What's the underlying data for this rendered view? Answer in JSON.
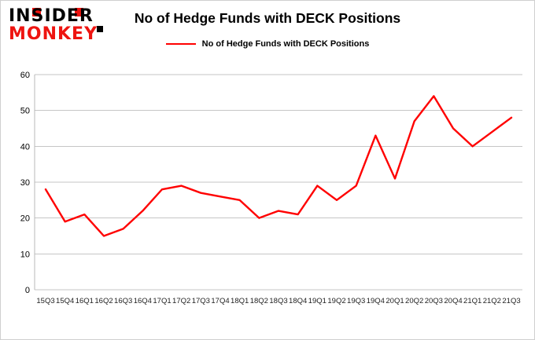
{
  "logo": {
    "line1": "INSIDER",
    "line2": "MONKEY",
    "accent_color": "#ee1410"
  },
  "legend": {
    "label": "No of Hedge Funds with DECK Positions",
    "color": "#ff0000"
  },
  "chart_data": {
    "type": "line",
    "title": "No of Hedge Funds with DECK Positions",
    "xlabel": "",
    "ylabel": "",
    "ylim": [
      0,
      60
    ],
    "yticks": [
      0,
      10,
      20,
      30,
      40,
      50,
      60
    ],
    "grid": true,
    "legend_position": "top",
    "categories": [
      "15Q3",
      "15Q4",
      "16Q1",
      "16Q2",
      "16Q3",
      "16Q4",
      "17Q1",
      "17Q2",
      "17Q3",
      "17Q4",
      "18Q1",
      "18Q2",
      "18Q3",
      "18Q4",
      "19Q1",
      "19Q2",
      "19Q3",
      "19Q4",
      "20Q1",
      "20Q2",
      "20Q3",
      "20Q4",
      "21Q1",
      "21Q2",
      "21Q3"
    ],
    "series": [
      {
        "name": "No of Hedge Funds with DECK Positions",
        "color": "#ff0000",
        "values": [
          28,
          19,
          21,
          15,
          17,
          22,
          28,
          29,
          27,
          26,
          25,
          20,
          22,
          21,
          29,
          25,
          29,
          43,
          31,
          47,
          54,
          45,
          40,
          44,
          48
        ]
      }
    ]
  }
}
